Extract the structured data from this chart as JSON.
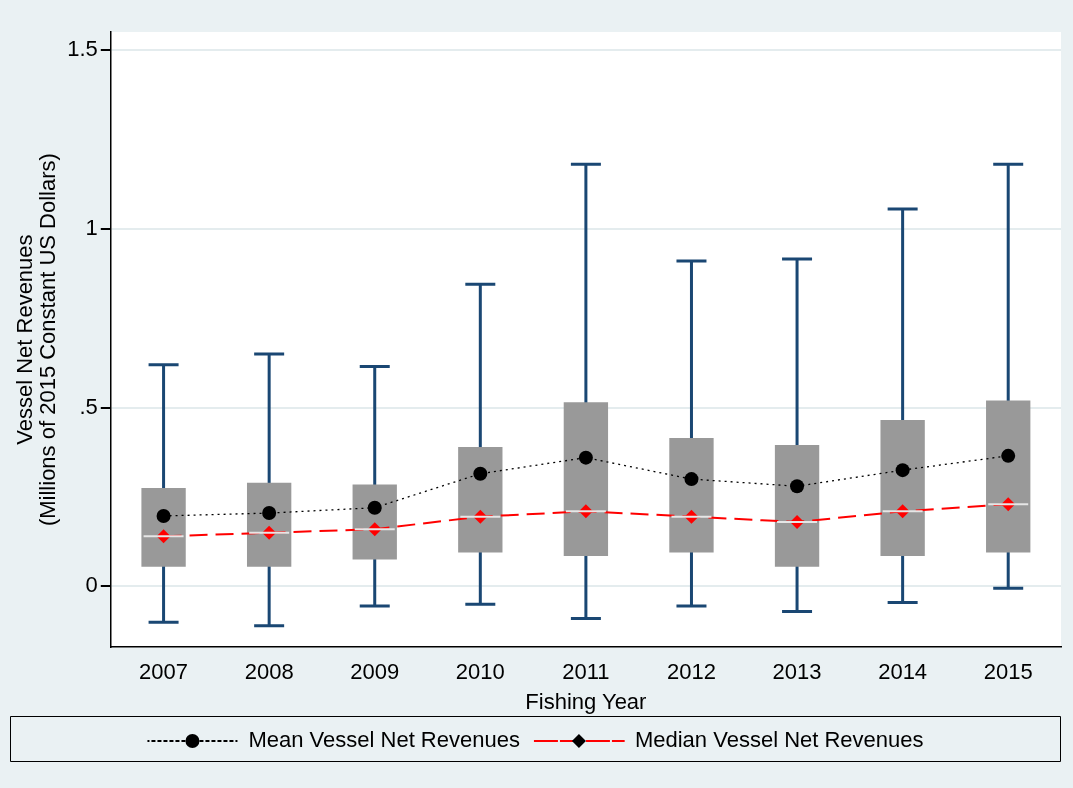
{
  "chart_data": {
    "type": "box",
    "xlabel": "Fishing Year",
    "ylabel": "Vessel Net Revenues\n(Millions of 2015 Constant US Dollars)",
    "categories": [
      "2007",
      "2008",
      "2009",
      "2010",
      "2011",
      "2012",
      "2013",
      "2014",
      "2015"
    ],
    "ylim": [
      -0.17,
      1.55
    ],
    "yticks": [
      0,
      {
        "value": 0.5,
        "label": ".5"
      },
      1,
      1.5
    ],
    "grid": "y",
    "legend": "bottom",
    "series": [
      {
        "type": "box",
        "color": "#999999",
        "boxes": [
          {
            "low": -0.1,
            "q1": 0.055,
            "median": 0.14,
            "q3": 0.275,
            "high": 0.62
          },
          {
            "low": -0.11,
            "q1": 0.055,
            "median": 0.15,
            "q3": 0.29,
            "high": 0.65
          },
          {
            "low": -0.055,
            "q1": 0.075,
            "median": 0.16,
            "q3": 0.285,
            "high": 0.615
          },
          {
            "low": -0.05,
            "q1": 0.095,
            "median": 0.195,
            "q3": 0.39,
            "high": 0.845
          },
          {
            "low": -0.09,
            "q1": 0.085,
            "median": 0.21,
            "q3": 0.515,
            "high": 1.18
          },
          {
            "low": -0.055,
            "q1": 0.095,
            "median": 0.195,
            "q3": 0.415,
            "high": 0.91
          },
          {
            "low": -0.07,
            "q1": 0.055,
            "median": 0.18,
            "q3": 0.395,
            "high": 0.915
          },
          {
            "low": -0.045,
            "q1": 0.085,
            "median": 0.21,
            "q3": 0.465,
            "high": 1.055
          },
          {
            "low": -0.005,
            "q1": 0.095,
            "median": 0.23,
            "q3": 0.52,
            "high": 1.18
          }
        ]
      },
      {
        "type": "line",
        "name": "Mean Vessel Net Revenues",
        "color": "#000000",
        "marker": "circle",
        "line_style": "dotted",
        "values": [
          0.197,
          0.205,
          0.22,
          0.315,
          0.36,
          0.3,
          0.28,
          0.325,
          0.365
        ]
      },
      {
        "type": "line",
        "name": "Median Vessel Net Revenues",
        "color": "#ff0000",
        "marker": "diamond",
        "line_style": "dashed",
        "values": [
          0.14,
          0.15,
          0.16,
          0.195,
          0.21,
          0.195,
          0.18,
          0.21,
          0.23
        ]
      }
    ]
  }
}
